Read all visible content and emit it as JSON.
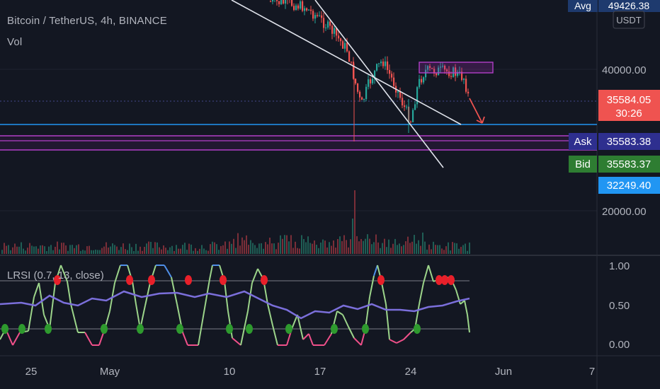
{
  "header": {
    "symbol_title": "Bitcoin / TetherUS, 4h, BINANCE",
    "volume_label": "Vol",
    "currency_badge": "USDT"
  },
  "price_axis": {
    "ticks": [
      "40000.00",
      "20000.00"
    ],
    "badges": [
      {
        "label": "Avg",
        "value": "49426.38",
        "color": "#1e3a6e"
      },
      {
        "label": "",
        "value": "35584.05",
        "sub": "30:26",
        "color": "#ef5350"
      },
      {
        "label": "Ask",
        "value": "35583.38",
        "color": "#2e2f8f"
      },
      {
        "label": "Bid",
        "value": "35583.37",
        "color": "#2e7d32"
      },
      {
        "label": "",
        "value": "32249.40",
        "color": "#2196f3"
      }
    ]
  },
  "indicator": {
    "legend": "LRSI (0.7, 13, close)",
    "axis_ticks": [
      "1.00",
      "0.50",
      "0.00"
    ]
  },
  "time_axis": {
    "labels": [
      "25",
      "May",
      "10",
      "17",
      "24",
      "Jun",
      "7"
    ]
  },
  "chart_data": [
    {
      "type": "candlestick",
      "title": "Bitcoin / TetherUS, 4h, BINANCE",
      "y_ticks": [
        40000,
        20000
      ],
      "current_price": 35584.05,
      "ask": 35583.38,
      "bid": 35583.37,
      "avg": 49426.38,
      "level": 32249.4,
      "x_labels": [
        "25",
        "May",
        "10",
        "17",
        "24",
        "Jun",
        "7"
      ],
      "colors": {
        "up": "#26a69a",
        "down": "#ef5350",
        "channel": "#e0e3eb",
        "zone": "#9c27b0",
        "level_line": "#2196f3"
      }
    },
    {
      "type": "line",
      "title": "LRSI (0.7, 13, close)",
      "ylim": [
        0,
        1
      ],
      "y_ticks": [
        1.0,
        0.5,
        0.0
      ]
    }
  ]
}
